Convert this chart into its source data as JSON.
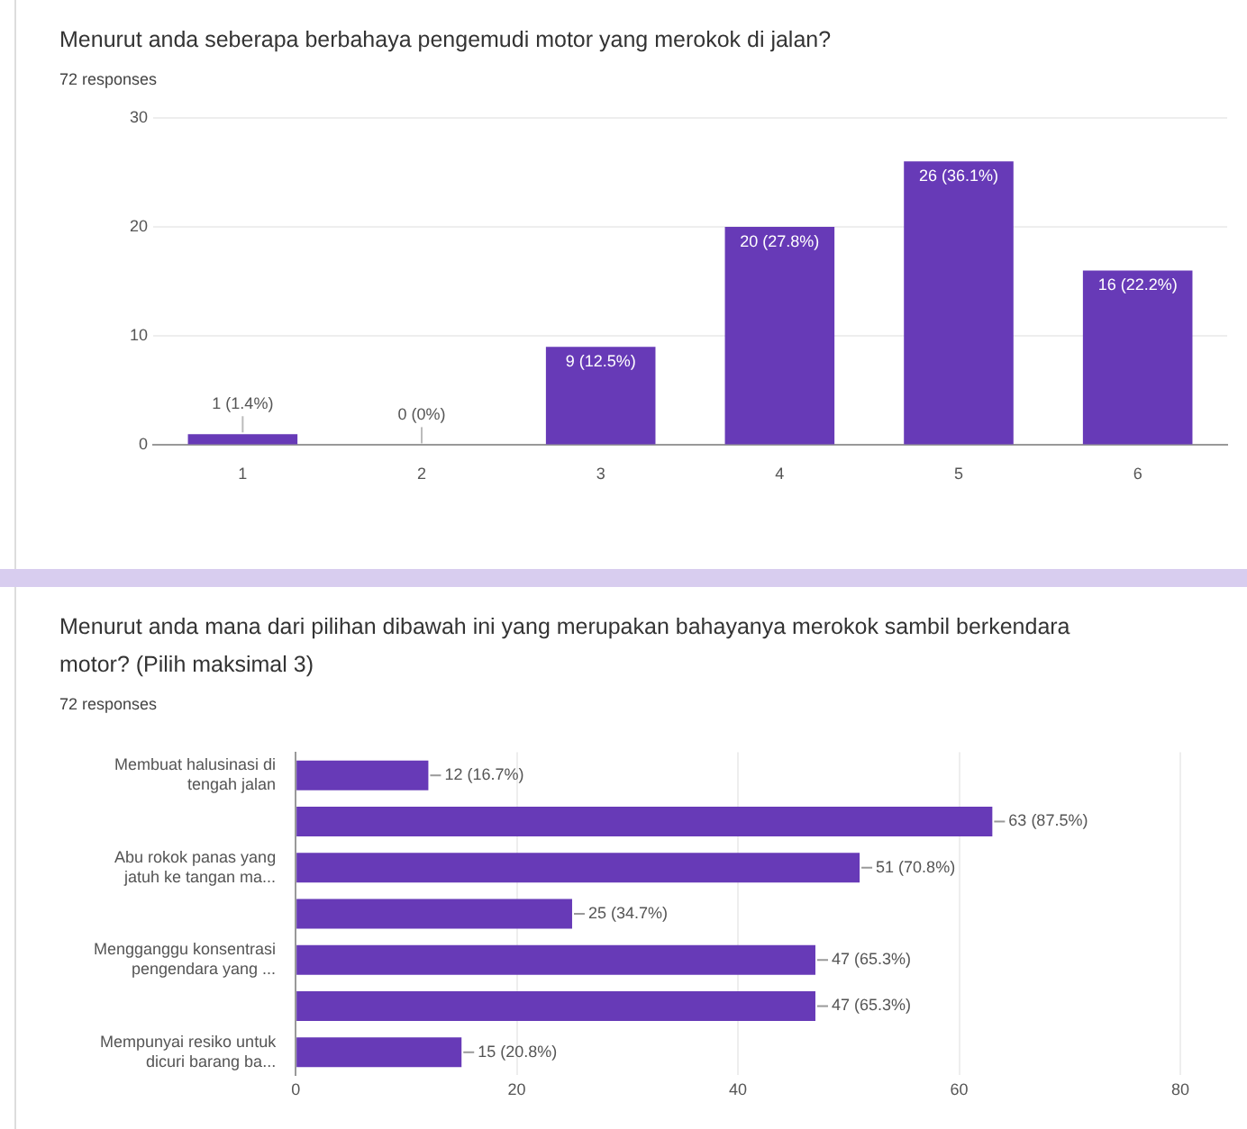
{
  "chart_data": [
    {
      "type": "bar",
      "title": "Menurut anda seberapa berbahaya pengemudi motor yang merokok di jalan?",
      "subtitle": "72 responses",
      "categories": [
        "1",
        "2",
        "3",
        "4",
        "5",
        "6"
      ],
      "values": [
        1,
        0,
        9,
        20,
        26,
        16
      ],
      "color": "#673ab7",
      "value_labels": [
        "1 (1.4%)",
        "0 (0%)",
        "9 (12.5%)",
        "20 (27.8%)",
        "26 (36.1%)",
        "16 (22.2%)"
      ],
      "ylim": [
        0,
        30
      ],
      "yticks": [
        0,
        10,
        20,
        30
      ],
      "grid": "y"
    },
    {
      "type": "bar",
      "orientation": "horizontal",
      "title": "Menurut anda mana dari pilihan dibawah ini yang merupakan bahayanya merokok sambil berkendara motor? (Pilih maksimal 3)",
      "subtitle": "72 responses",
      "categories": [
        "Membuat halusinasi di tengah jalan",
        null,
        "Abu rokok panas yang jatuh ke tangan ma...",
        null,
        "Mengganggu konsentrasi pengendara yang ...",
        null,
        "Mempunyai resiko untuk dicuri barang ba..."
      ],
      "values": [
        12,
        63,
        51,
        25,
        47,
        47,
        15
      ],
      "color": "#673ab7",
      "value_labels": [
        "12 (16.7%)",
        "63 (87.5%)",
        "51 (70.8%)",
        "25 (34.7%)",
        "47 (65.3%)",
        "47 (65.3%)",
        "15 (20.8%)"
      ],
      "xlim": [
        0,
        80
      ],
      "xticks": [
        0,
        20,
        40,
        60,
        80
      ],
      "grid": "x"
    }
  ]
}
